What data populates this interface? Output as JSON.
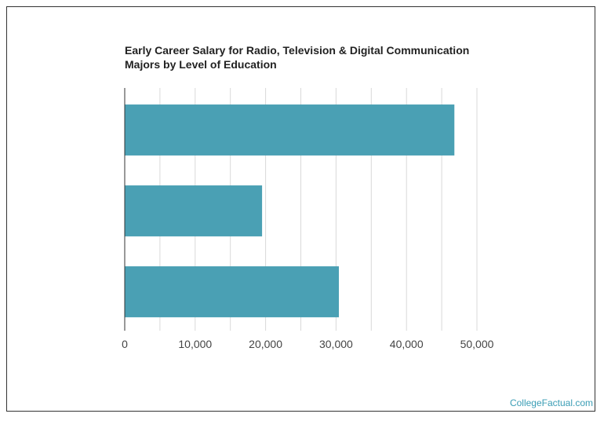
{
  "title_line1": "Early Career Salary for Radio, Television & Digital Communication",
  "title_line2": "Majors by Level of Education",
  "credit": "CollegeFactual.com",
  "colors": {
    "bar": "#4aa0b4",
    "grid": "#d9d9d9",
    "axis": "#333333",
    "tick_text": "#444444",
    "credit": "#3a9db5"
  },
  "chart_data": {
    "type": "bar",
    "orientation": "horizontal",
    "title": "Early Career Salary for Radio, Television & Digital Communication Majors by Level of Education",
    "categories": [
      "",
      "",
      ""
    ],
    "values": [
      46800,
      19500,
      30400
    ],
    "xlim": [
      0,
      50000
    ],
    "xticks": [
      0,
      10000,
      20000,
      30000,
      40000,
      50000
    ],
    "xtick_labels": [
      "0",
      "10,000",
      "20,000",
      "30,000",
      "40,000",
      "50,000"
    ],
    "grid": true,
    "legend": "none"
  }
}
